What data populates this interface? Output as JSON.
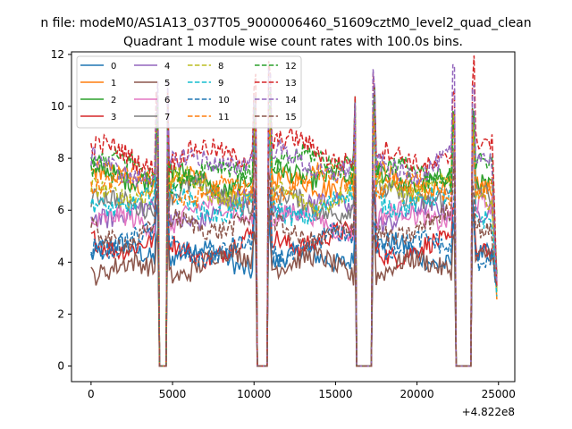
{
  "suptitle": "n file: modeM0/AS1A13_037T05_9000006460_51609cztM0_level2_quad_clean",
  "colors": {
    "tab10": [
      "#1f77b4",
      "#ff7f0e",
      "#2ca02c",
      "#d62728",
      "#9467bd",
      "#8c564b",
      "#e377c2",
      "#7f7f7f",
      "#bcbd22",
      "#17becf"
    ]
  },
  "chart_data": {
    "type": "line",
    "title": "Quadrant 1 module wise count rates with 100.0s bins.",
    "xlabel": "",
    "ylabel": "",
    "x_offset_label": "+4.822e8",
    "xlim": [
      -1200,
      26000
    ],
    "ylim": [
      -0.6,
      12.1
    ],
    "x_ticks": [
      0,
      5000,
      10000,
      15000,
      20000,
      25000
    ],
    "x_tick_labels": [
      "0",
      "5000",
      "10000",
      "15000",
      "20000",
      "25000"
    ],
    "y_ticks": [
      0,
      2,
      4,
      6,
      8,
      10,
      12
    ],
    "y_tick_labels": [
      "0",
      "2",
      "4",
      "6",
      "8",
      "10",
      "12"
    ],
    "grid": false,
    "legend_placement": "top-left",
    "legend_columns": 4,
    "x_range": [
      0,
      24900
    ],
    "bin": 100,
    "gaps": [
      [
        4150,
        4600
      ],
      [
        10150,
        10850
      ],
      [
        16300,
        17250
      ],
      [
        22350,
        23350
      ]
    ],
    "series": [
      {
        "name": "0",
        "base": 4.2,
        "dashed": false
      },
      {
        "name": "1",
        "base": 7.0,
        "dashed": false
      },
      {
        "name": "2",
        "base": 7.3,
        "dashed": false
      },
      {
        "name": "3",
        "base": 4.7,
        "dashed": false
      },
      {
        "name": "4",
        "base": 6.0,
        "dashed": false
      },
      {
        "name": "5",
        "base": 3.9,
        "dashed": false
      },
      {
        "name": "6",
        "base": 5.7,
        "dashed": false
      },
      {
        "name": "7",
        "base": 6.4,
        "dashed": false
      },
      {
        "name": "8",
        "base": 6.7,
        "dashed": true
      },
      {
        "name": "9",
        "base": 6.2,
        "dashed": true
      },
      {
        "name": "10",
        "base": 4.6,
        "dashed": true
      },
      {
        "name": "11",
        "base": 6.9,
        "dashed": true
      },
      {
        "name": "12",
        "base": 7.6,
        "dashed": true
      },
      {
        "name": "13",
        "base": 8.2,
        "dashed": true
      },
      {
        "name": "14",
        "base": 7.8,
        "dashed": true
      },
      {
        "name": "15",
        "base": 5.3,
        "dashed": true
      }
    ]
  }
}
